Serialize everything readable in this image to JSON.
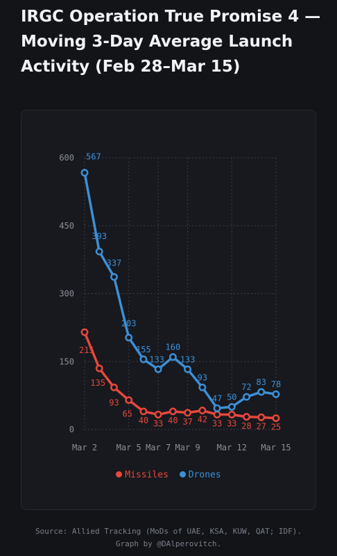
{
  "title": "IRGC Operation True Promise 4 — Moving 3-Day Average Launch Activity (Feb 28–Mar 15)",
  "source_line1": "Source: Allied Tracking (MoDs of UAE, KSA, KUW, QAT; IDF).",
  "source_line2": "Graph by @DAlperovitch.",
  "colors": {
    "missiles": "#e8473c",
    "drones": "#3d8fd6",
    "axis": "#8a8f98",
    "grid": "#3a3e45"
  },
  "chart_data": {
    "type": "line",
    "x": [
      2,
      3,
      4,
      5,
      6,
      7,
      8,
      9,
      10,
      11,
      12,
      13,
      14,
      15
    ],
    "x_ticks": [
      {
        "value": 2,
        "label": "Mar 2"
      },
      {
        "value": 5,
        "label": "Mar 5"
      },
      {
        "value": 7,
        "label": "Mar 7"
      },
      {
        "value": 9,
        "label": "Mar 9"
      },
      {
        "value": 12,
        "label": "Mar 12"
      },
      {
        "value": 15,
        "label": "Mar 15"
      }
    ],
    "y_ticks": [
      0,
      150,
      300,
      450,
      600
    ],
    "ylim": [
      0,
      600
    ],
    "xlim": [
      2,
      15
    ],
    "grid": true,
    "legend_position": "bottom-center",
    "series": [
      {
        "name": "Missiles",
        "color": "#e8473c",
        "values": [
          215,
          135,
          93,
          65,
          40,
          33,
          40,
          37,
          42,
          33,
          33,
          28,
          27,
          25
        ]
      },
      {
        "name": "Drones",
        "color": "#3d8fd6",
        "values": [
          567,
          393,
          337,
          203,
          155,
          133,
          160,
          133,
          93,
          47,
          50,
          72,
          83,
          78
        ]
      }
    ]
  }
}
